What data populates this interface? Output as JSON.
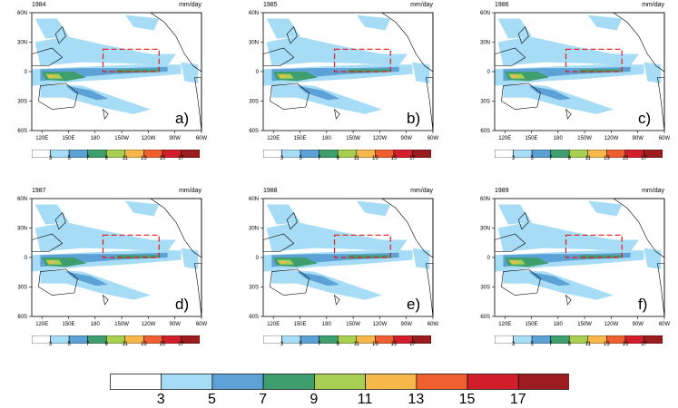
{
  "units": "mm/day",
  "panels": [
    {
      "year": "1984",
      "letter": "a)"
    },
    {
      "year": "1985",
      "letter": "b)"
    },
    {
      "year": "1986",
      "letter": "c)"
    },
    {
      "year": "1987",
      "letter": "d)"
    },
    {
      "year": "1988",
      "letter": "e)"
    },
    {
      "year": "1989",
      "letter": "f)"
    }
  ],
  "lat_ticks": [
    "60N",
    "30N",
    "0",
    "30S",
    "60S"
  ],
  "lon_ticks": [
    "120E",
    "150E",
    "180",
    "150W",
    "120W",
    "90W",
    "60W"
  ],
  "colorbar": {
    "levels": [
      "3",
      "5",
      "7",
      "9",
      "11",
      "13",
      "15",
      "17"
    ],
    "colors": [
      "#ffffff",
      "#a6dcf5",
      "#5ca2d6",
      "#3f9e6e",
      "#a9cf52",
      "#f7b84b",
      "#ef5f30",
      "#d21e2a",
      "#9b1b1e"
    ]
  },
  "colors": {
    "land_outline": "#000000",
    "box": "#e41a1c"
  }
}
